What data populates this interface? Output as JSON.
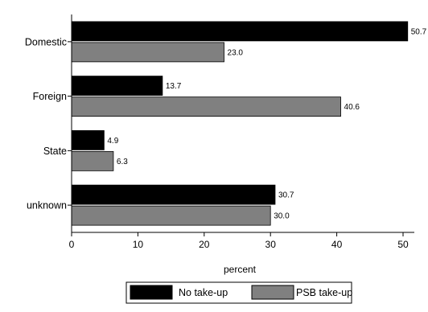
{
  "chart_data": {
    "type": "bar",
    "orientation": "horizontal",
    "categories": [
      "Domestic",
      "Foreign",
      "State",
      "unknown"
    ],
    "series": [
      {
        "name": "No take-up",
        "values": [
          50.7,
          13.7,
          4.9,
          30.7
        ],
        "color": "#000000"
      },
      {
        "name": "PSB take-up",
        "values": [
          23.0,
          40.6,
          6.3,
          30.0
        ],
        "color": "#808080"
      }
    ],
    "value_labels": [
      [
        "50.7",
        "13.7",
        "4.9",
        "30.7"
      ],
      [
        "23.0",
        "40.6",
        "6.3",
        "30.0"
      ]
    ],
    "xlabel": "percent",
    "ylabel": "",
    "xlim": [
      0,
      51.7
    ],
    "xticks": [
      0,
      10,
      20,
      30,
      40,
      50
    ],
    "xtick_labels": [
      "0",
      "10",
      "20",
      "30",
      "40",
      "50"
    ],
    "grid": false,
    "legend_position": "bottom"
  }
}
